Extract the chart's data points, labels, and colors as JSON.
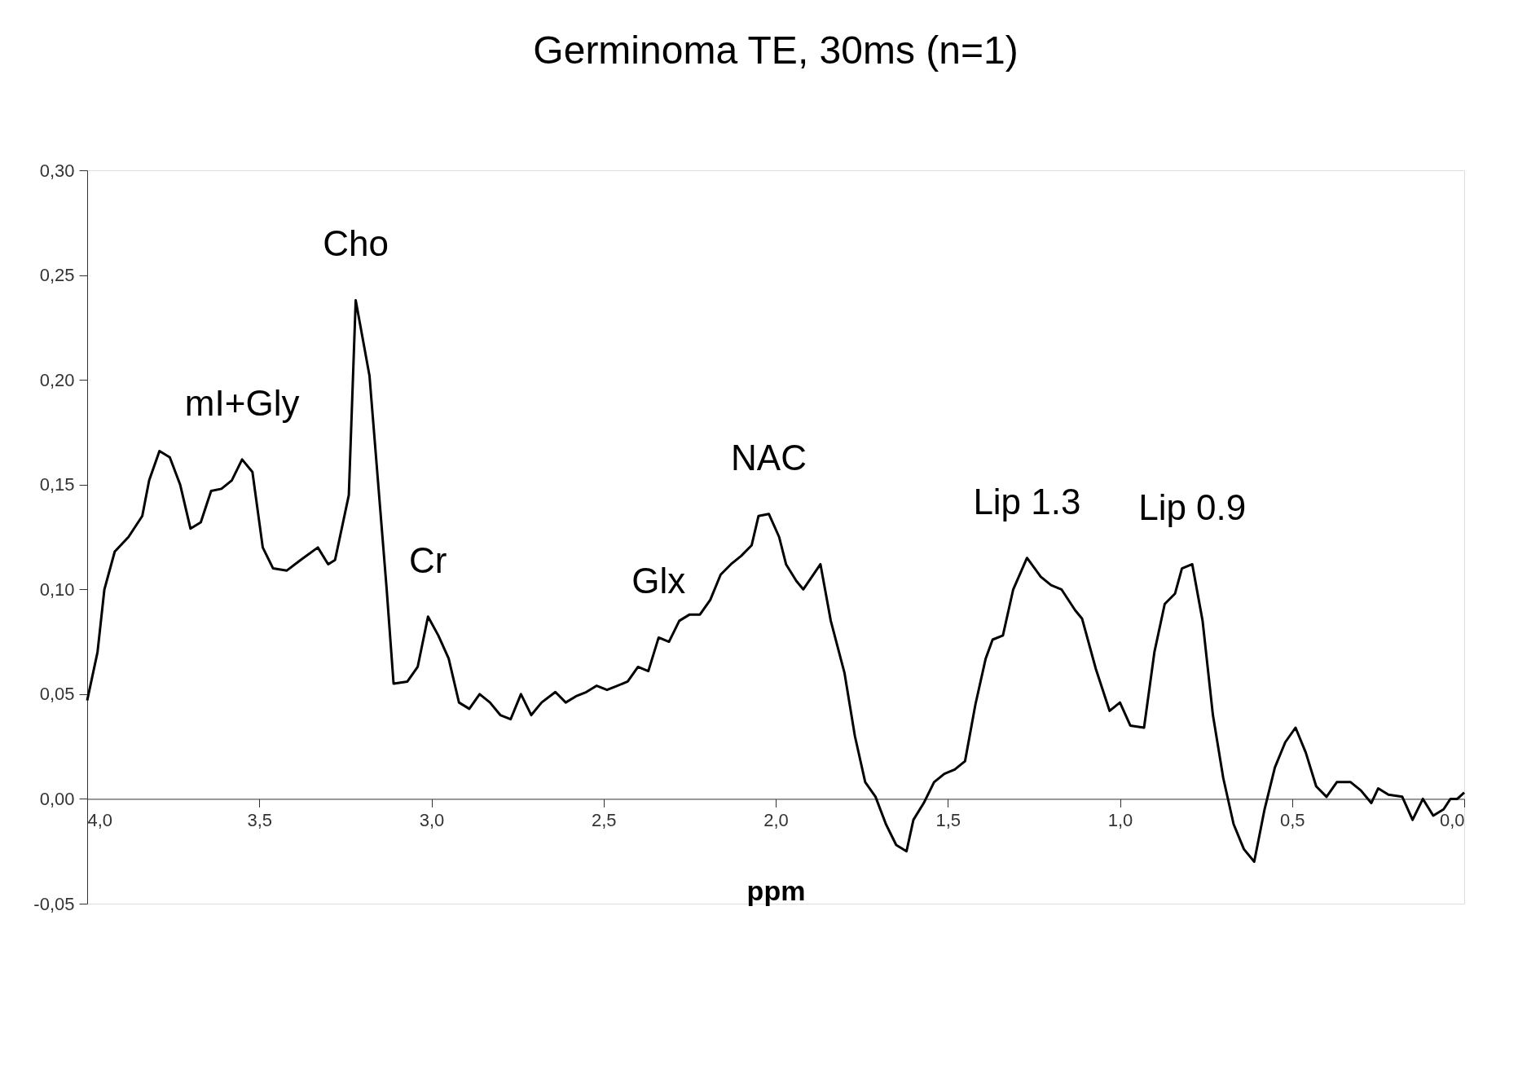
{
  "chart_data": {
    "type": "line",
    "title": "Germinoma TE, 30ms (n=1)",
    "xlabel": "ppm",
    "x": [
      4.0,
      3.97,
      3.95,
      3.92,
      3.88,
      3.84,
      3.82,
      3.79,
      3.76,
      3.73,
      3.7,
      3.67,
      3.64,
      3.61,
      3.58,
      3.55,
      3.52,
      3.49,
      3.46,
      3.42,
      3.38,
      3.33,
      3.3,
      3.28,
      3.24,
      3.22,
      3.18,
      3.13,
      3.11,
      3.07,
      3.04,
      3.01,
      2.98,
      2.95,
      2.92,
      2.89,
      2.86,
      2.83,
      2.8,
      2.77,
      2.74,
      2.71,
      2.68,
      2.64,
      2.61,
      2.58,
      2.55,
      2.52,
      2.49,
      2.46,
      2.43,
      2.4,
      2.37,
      2.34,
      2.31,
      2.28,
      2.25,
      2.22,
      2.19,
      2.16,
      2.13,
      2.1,
      2.07,
      2.05,
      2.02,
      1.99,
      1.97,
      1.94,
      1.92,
      1.87,
      1.84,
      1.8,
      1.77,
      1.74,
      1.71,
      1.68,
      1.65,
      1.62,
      1.6,
      1.57,
      1.54,
      1.51,
      1.48,
      1.45,
      1.42,
      1.39,
      1.37,
      1.34,
      1.31,
      1.27,
      1.23,
      1.2,
      1.17,
      1.13,
      1.11,
      1.07,
      1.03,
      1.0,
      0.97,
      0.93,
      0.9,
      0.87,
      0.84,
      0.82,
      0.79,
      0.76,
      0.73,
      0.7,
      0.67,
      0.64,
      0.61,
      0.58,
      0.55,
      0.52,
      0.49,
      0.46,
      0.43,
      0.4,
      0.37,
      0.33,
      0.3,
      0.27,
      0.25,
      0.22,
      0.18,
      0.15,
      0.12,
      0.09,
      0.06,
      0.04,
      0.02,
      0.0
    ],
    "series": [
      {
        "color": "#000000",
        "values": [
          0.047,
          0.07,
          0.1,
          0.118,
          0.125,
          0.135,
          0.152,
          0.166,
          0.163,
          0.15,
          0.129,
          0.132,
          0.147,
          0.148,
          0.152,
          0.162,
          0.156,
          0.12,
          0.11,
          0.109,
          0.114,
          0.12,
          0.112,
          0.114,
          0.145,
          0.238,
          0.202,
          0.1,
          0.055,
          0.056,
          0.063,
          0.087,
          0.078,
          0.067,
          0.046,
          0.043,
          0.05,
          0.046,
          0.04,
          0.038,
          0.05,
          0.04,
          0.046,
          0.051,
          0.046,
          0.049,
          0.051,
          0.054,
          0.052,
          0.054,
          0.056,
          0.063,
          0.061,
          0.077,
          0.075,
          0.085,
          0.088,
          0.088,
          0.095,
          0.107,
          0.112,
          0.116,
          0.121,
          0.135,
          0.136,
          0.125,
          0.112,
          0.104,
          0.1,
          0.112,
          0.085,
          0.06,
          0.03,
          0.008,
          0.001,
          -0.012,
          -0.022,
          -0.025,
          -0.01,
          -0.002,
          0.008,
          0.012,
          0.014,
          0.018,
          0.045,
          0.067,
          0.076,
          0.078,
          0.1,
          0.115,
          0.106,
          0.102,
          0.1,
          0.09,
          0.086,
          0.062,
          0.042,
          0.046,
          0.035,
          0.034,
          0.07,
          0.093,
          0.098,
          0.11,
          0.112,
          0.085,
          0.04,
          0.01,
          -0.012,
          -0.024,
          -0.03,
          -0.005,
          0.015,
          0.027,
          0.034,
          0.022,
          0.006,
          0.001,
          0.008,
          0.008,
          0.004,
          -0.002,
          0.005,
          0.002,
          0.001,
          -0.01,
          0.0,
          -0.008,
          -0.005,
          0.0,
          0.0,
          0.003
        ]
      }
    ],
    "xlim": [
      4.0,
      0.0
    ],
    "xticks": [
      {
        "value": 4.0,
        "label": "4,0"
      },
      {
        "value": 3.5,
        "label": "3,5"
      },
      {
        "value": 3.0,
        "label": "3,0"
      },
      {
        "value": 2.5,
        "label": "2,5"
      },
      {
        "value": 2.0,
        "label": "2,0"
      },
      {
        "value": 1.5,
        "label": "1,5"
      },
      {
        "value": 1.0,
        "label": "1,0"
      },
      {
        "value": 0.5,
        "label": "0,5"
      },
      {
        "value": 0.0,
        "label": "0,0"
      }
    ],
    "ylim": [
      -0.05,
      0.3
    ],
    "yticks": [
      {
        "value": -0.05,
        "label": "-0,05"
      },
      {
        "value": 0.0,
        "label": "0,00"
      },
      {
        "value": 0.05,
        "label": "0,05"
      },
      {
        "value": 0.1,
        "label": "0,10"
      },
      {
        "value": 0.15,
        "label": "0,15"
      },
      {
        "value": 0.2,
        "label": "0,20"
      },
      {
        "value": 0.25,
        "label": "0,25"
      },
      {
        "value": 0.3,
        "label": "0,30"
      }
    ],
    "annotations": [
      {
        "text": "mI+Gly",
        "x": 3.55,
        "y": 0.162
      },
      {
        "text": "Cho",
        "x": 3.22,
        "y": 0.238
      },
      {
        "text": "Cr",
        "x": 3.01,
        "y": 0.087
      },
      {
        "text": "Glx",
        "x": 2.34,
        "y": 0.077
      },
      {
        "text": "NAC",
        "x": 2.02,
        "y": 0.136
      },
      {
        "text": "Lip 1.3",
        "x": 1.27,
        "y": 0.115
      },
      {
        "text": "Lip 0.9",
        "x": 0.79,
        "y": 0.112
      }
    ],
    "grid": false,
    "marker": "none",
    "line_style": "solid"
  }
}
